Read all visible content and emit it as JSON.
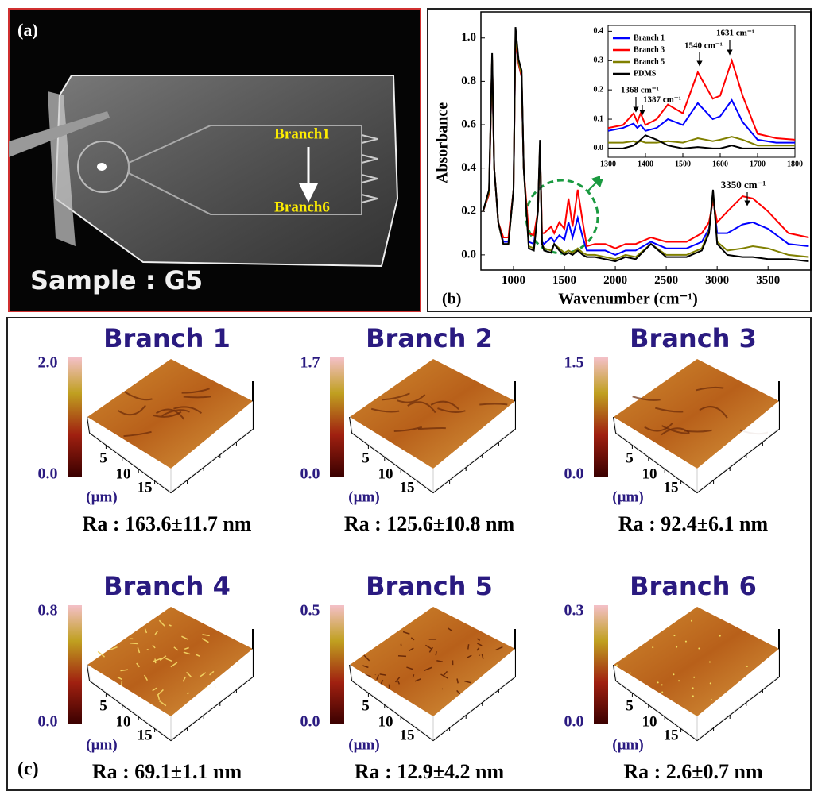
{
  "panel_a": {
    "label": "(a)",
    "branch_top": "Branch1",
    "branch_bottom": "Branch6",
    "sample": "Sample : G5"
  },
  "chart_data": [
    {
      "type": "line",
      "label": "(b)",
      "xlabel": "Wavenumber (cm⁻¹)",
      "ylabel": "Absorbance",
      "x": [
        700,
        760,
        790,
        810,
        830,
        850,
        900,
        950,
        1000,
        1020,
        1050,
        1080,
        1100,
        1150,
        1200,
        1240,
        1260,
        1280,
        1300,
        1370,
        1400,
        1450,
        1500,
        1540,
        1580,
        1631,
        1680,
        1720,
        1800,
        1900,
        2000,
        2100,
        2200,
        2350,
        2500,
        2700,
        2850,
        2920,
        2960,
        3000,
        3100,
        3250,
        3350,
        3500,
        3700,
        3900
      ],
      "series": [
        {
          "color": "#0000ff",
          "values": [
            0.2,
            0.28,
            0.9,
            0.4,
            0.28,
            0.15,
            0.06,
            0.06,
            0.3,
            1.0,
            0.88,
            0.82,
            0.4,
            0.06,
            0.05,
            0.2,
            0.5,
            0.06,
            0.05,
            0.08,
            0.06,
            0.09,
            0.07,
            0.15,
            0.08,
            0.17,
            0.08,
            0.02,
            0.02,
            0.02,
            0.0,
            0.02,
            0.02,
            0.06,
            0.03,
            0.03,
            0.06,
            0.12,
            0.27,
            0.1,
            0.1,
            0.14,
            0.15,
            0.12,
            0.05,
            0.04
          ]
        },
        {
          "color": "#ff0000",
          "values": [
            0.2,
            0.28,
            0.9,
            0.4,
            0.28,
            0.15,
            0.08,
            0.08,
            0.3,
            1.0,
            0.88,
            0.82,
            0.4,
            0.1,
            0.09,
            0.2,
            0.5,
            0.1,
            0.1,
            0.13,
            0.1,
            0.15,
            0.12,
            0.26,
            0.13,
            0.3,
            0.15,
            0.04,
            0.05,
            0.05,
            0.03,
            0.05,
            0.05,
            0.08,
            0.06,
            0.06,
            0.1,
            0.15,
            0.25,
            0.15,
            0.2,
            0.27,
            0.26,
            0.2,
            0.1,
            0.08
          ]
        },
        {
          "color": "#808000",
          "values": [
            0.2,
            0.29,
            0.91,
            0.4,
            0.28,
            0.15,
            0.05,
            0.05,
            0.3,
            1.02,
            0.89,
            0.83,
            0.4,
            0.04,
            0.03,
            0.2,
            0.51,
            0.05,
            0.03,
            0.02,
            0.05,
            0.03,
            0.01,
            0.02,
            0.01,
            0.03,
            0.01,
            0.0,
            0.0,
            -0.01,
            -0.02,
            0.0,
            -0.01,
            0.05,
            0.0,
            0.0,
            0.03,
            0.11,
            0.29,
            0.06,
            0.02,
            0.03,
            0.04,
            0.03,
            0.0,
            -0.01
          ]
        },
        {
          "color": "#000000",
          "values": [
            0.2,
            0.3,
            0.93,
            0.4,
            0.28,
            0.15,
            0.05,
            0.05,
            0.3,
            1.05,
            0.9,
            0.85,
            0.4,
            0.03,
            0.02,
            0.2,
            0.53,
            0.05,
            0.02,
            0.01,
            0.05,
            0.02,
            0.0,
            0.01,
            0.0,
            0.02,
            0.0,
            -0.01,
            -0.01,
            -0.02,
            -0.03,
            -0.01,
            -0.02,
            0.05,
            -0.01,
            -0.01,
            0.02,
            0.1,
            0.3,
            0.05,
            0.0,
            -0.01,
            -0.01,
            -0.02,
            -0.02,
            -0.03
          ]
        }
      ],
      "xlim": [
        680,
        3920
      ],
      "xticks": [
        1000,
        1500,
        2000,
        2500,
        3000,
        3500
      ],
      "ylim": [
        -0.07,
        1.12
      ],
      "yticks": [
        {
          "value": 0,
          "label": "0.0"
        },
        0.2,
        0.4,
        0.6,
        0.8,
        {
          "value": 1,
          "label": "1.0"
        }
      ],
      "annotations": [
        "3350 cm⁻¹"
      ]
    },
    {
      "type": "line",
      "x": [
        1300,
        1340,
        1368,
        1378,
        1387,
        1400,
        1430,
        1460,
        1500,
        1540,
        1580,
        1600,
        1631,
        1660,
        1700,
        1750,
        1800
      ],
      "series": [
        {
          "name": "Branch 1",
          "color": "#0000ff",
          "values": [
            0.06,
            0.07,
            0.085,
            0.07,
            0.08,
            0.06,
            0.07,
            0.1,
            0.08,
            0.155,
            0.1,
            0.11,
            0.165,
            0.09,
            0.03,
            0.02,
            0.02
          ]
        },
        {
          "name": "Branch 3",
          "color": "#ff0000",
          "values": [
            0.07,
            0.08,
            0.12,
            0.09,
            0.12,
            0.08,
            0.1,
            0.15,
            0.12,
            0.26,
            0.17,
            0.18,
            0.3,
            0.18,
            0.05,
            0.035,
            0.03
          ]
        },
        {
          "name": "Branch 5",
          "color": "#808000",
          "values": [
            0.02,
            0.02,
            0.025,
            0.02,
            0.025,
            0.02,
            0.02,
            0.025,
            0.02,
            0.035,
            0.025,
            0.03,
            0.04,
            0.03,
            0.01,
            0.01,
            0.01
          ]
        },
        {
          "name": "PDMS",
          "color": "#000000",
          "values": [
            0.0,
            0.0,
            0.01,
            0.02,
            0.03,
            0.045,
            0.03,
            0.01,
            0.0,
            0.005,
            0.0,
            0.0,
            0.01,
            0.0,
            0.0,
            0.0,
            0.0
          ]
        }
      ],
      "xlim": [
        1300,
        1800
      ],
      "xticks": [
        1300,
        1400,
        1500,
        1600,
        1700,
        1800
      ],
      "ylim": [
        -0.03,
        0.42
      ],
      "yticks": [
        {
          "value": 0,
          "label": "0.0"
        },
        0.1,
        0.2,
        0.3,
        0.4
      ],
      "annotations": [
        "1368 cm⁻¹",
        "1387 cm⁻¹",
        "1540 cm⁻¹",
        "1631 cm⁻¹"
      ]
    }
  ],
  "panel_c": {
    "label": "(c)",
    "afm": [
      {
        "title": "Branch 1",
        "scale_max": "2.0",
        "scale_min": "0.0",
        "unit": "(µm)",
        "ticks": [
          "5",
          "10",
          "15"
        ],
        "ra": "Ra : 163.6±11.7 nm"
      },
      {
        "title": "Branch 2",
        "scale_max": "1.7",
        "scale_min": "0.0",
        "unit": "(µm)",
        "ticks": [
          "5",
          "10",
          "15"
        ],
        "ra": "Ra : 125.6±10.8 nm"
      },
      {
        "title": "Branch 3",
        "scale_max": "1.5",
        "scale_min": "0.0",
        "unit": "(µm)",
        "ticks": [
          "5",
          "10",
          "15"
        ],
        "ra": "Ra : 92.4±6.1 nm"
      },
      {
        "title": "Branch 4",
        "scale_max": "0.8",
        "scale_min": "0.0",
        "unit": "(µm)",
        "ticks": [
          "5",
          "10",
          "15"
        ],
        "ra": "Ra : 69.1±1.1 nm"
      },
      {
        "title": "Branch 5",
        "scale_max": "0.5",
        "scale_min": "0.0",
        "unit": "(µm)",
        "ticks": [
          "5",
          "10",
          "15"
        ],
        "ra": "Ra : 12.9±4.2 nm"
      },
      {
        "title": "Branch 6",
        "scale_max": "0.3",
        "scale_min": "0.0",
        "unit": "(µm)",
        "ticks": [
          "5",
          "10",
          "15"
        ],
        "ra": "Ra : 2.6±0.7 nm"
      }
    ]
  }
}
